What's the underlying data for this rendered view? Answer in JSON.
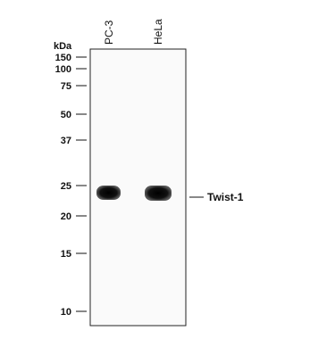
{
  "blot": {
    "unit_label": "kDa",
    "lanes": [
      "PC-3",
      "HeLa"
    ],
    "markers": [
      "150",
      "100",
      "75",
      "50",
      "37",
      "25",
      "20",
      "15",
      "10"
    ],
    "band_label": "Twist-1"
  }
}
